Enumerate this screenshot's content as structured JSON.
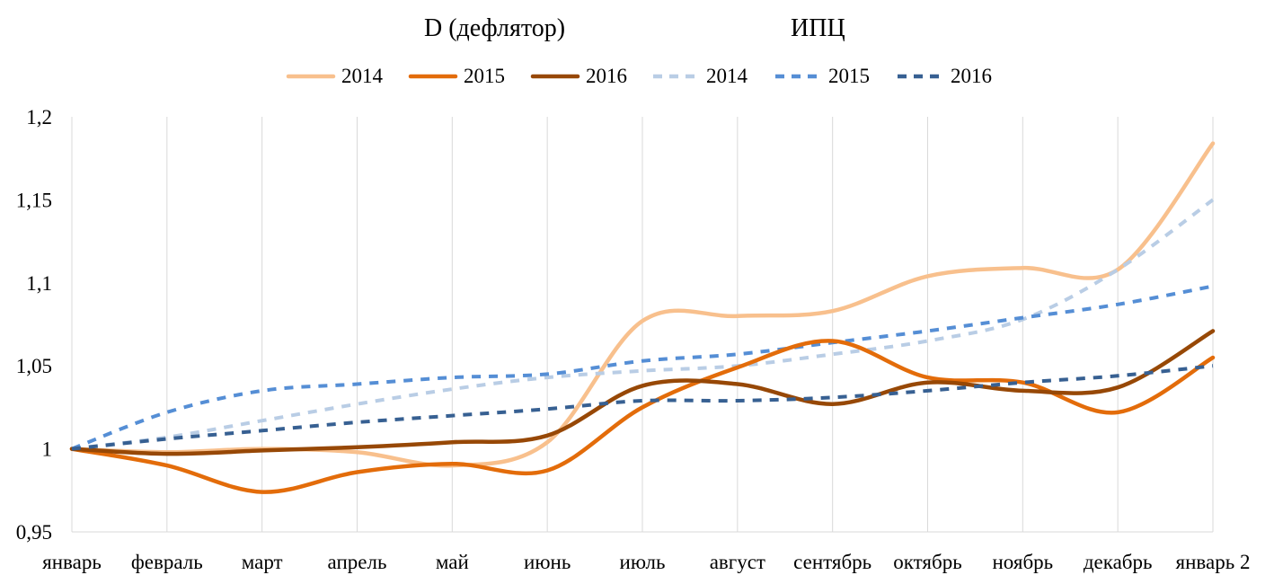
{
  "chart_data": {
    "type": "line",
    "group_titles": [
      "D (дефлятор)",
      "ИПЦ"
    ],
    "categories": [
      "январь",
      "февраль",
      "март",
      "апрель",
      "май",
      "июнь",
      "июль",
      "август",
      "сентябрь",
      "октябрь",
      "ноябрь",
      "декабрь",
      "январь 2"
    ],
    "ylim": [
      0.95,
      1.2
    ],
    "yticks": [
      0.95,
      1,
      1.05,
      1.1,
      1.15,
      1.2
    ],
    "ytick_labels": [
      "0,95",
      "1",
      "1,05",
      "1,1",
      "1,15",
      "1,2"
    ],
    "grid": "vertical",
    "legend_position": "top",
    "series": [
      {
        "name": "2014",
        "group": "D (дефлятор)",
        "style": "solid",
        "color": "#F8C08D",
        "values": [
          1.0,
          0.998,
          1.0,
          0.998,
          0.99,
          1.004,
          1.077,
          1.08,
          1.083,
          1.104,
          1.109,
          1.108,
          1.184
        ]
      },
      {
        "name": "2015",
        "group": "D (дефлятор)",
        "style": "solid",
        "color": "#E36C0A",
        "values": [
          1.0,
          0.99,
          0.974,
          0.986,
          0.991,
          0.987,
          1.025,
          1.049,
          1.065,
          1.043,
          1.04,
          1.022,
          1.055
        ]
      },
      {
        "name": "2016",
        "group": "D (дефлятор)",
        "style": "solid",
        "color": "#974806",
        "values": [
          1.0,
          0.997,
          0.999,
          1.001,
          1.004,
          1.008,
          1.038,
          1.039,
          1.027,
          1.04,
          1.035,
          1.037,
          1.071
        ]
      },
      {
        "name": "2014",
        "group": "ИПЦ",
        "style": "dashed",
        "color": "#B9CDE5",
        "values": [
          1.0,
          1.007,
          1.017,
          1.027,
          1.036,
          1.043,
          1.047,
          1.05,
          1.057,
          1.065,
          1.078,
          1.108,
          1.15
        ]
      },
      {
        "name": "2015",
        "group": "ИПЦ",
        "style": "dashed",
        "color": "#558ED5",
        "values": [
          1.0,
          1.022,
          1.035,
          1.039,
          1.043,
          1.045,
          1.053,
          1.057,
          1.064,
          1.071,
          1.079,
          1.087,
          1.098
        ]
      },
      {
        "name": "2016",
        "group": "ИПЦ",
        "style": "dashed",
        "color": "#376092",
        "values": [
          1.0,
          1.006,
          1.011,
          1.016,
          1.02,
          1.024,
          1.029,
          1.029,
          1.031,
          1.035,
          1.04,
          1.044,
          1.05
        ]
      }
    ]
  }
}
